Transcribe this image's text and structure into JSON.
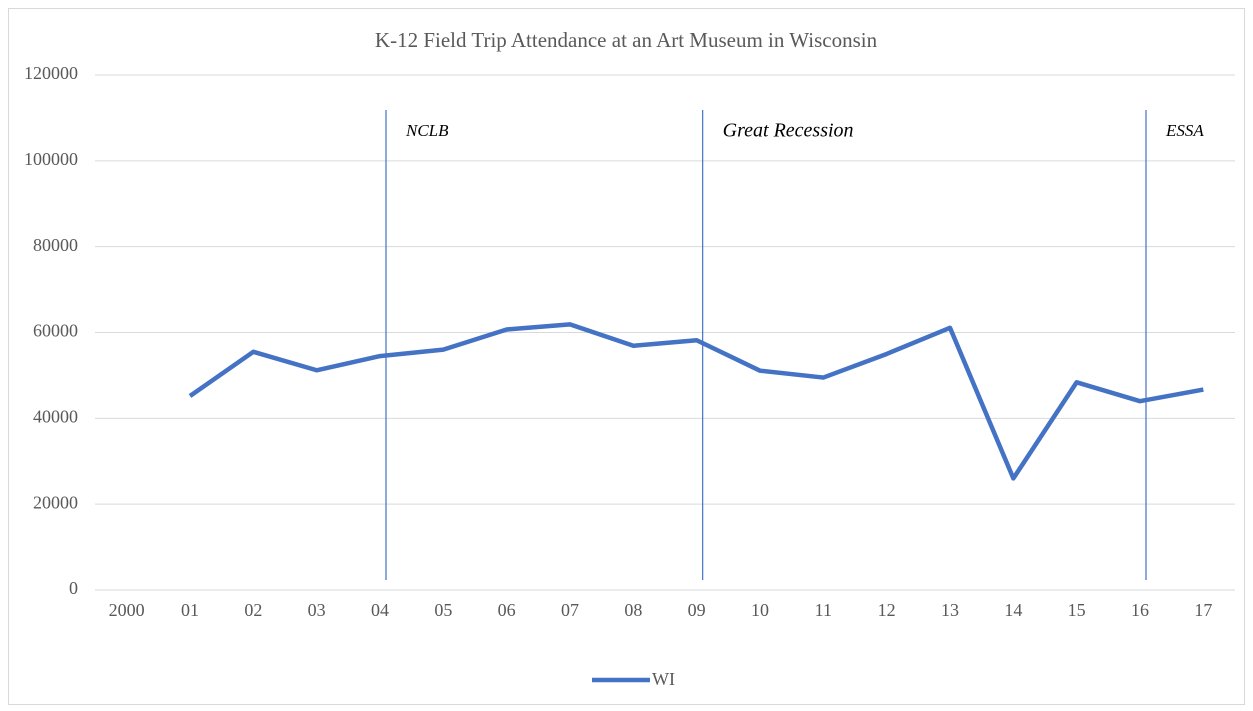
{
  "chart_data": {
    "type": "line",
    "title": "K-12 Field Trip Attendance at an Art Museum in Wisconsin",
    "categories": [
      "2000",
      "01",
      "02",
      "03",
      "04",
      "05",
      "06",
      "07",
      "08",
      "09",
      "10",
      "11",
      "12",
      "13",
      "14",
      "15",
      "16",
      "17"
    ],
    "series": [
      {
        "name": "WI",
        "color": "#4472c4",
        "values": [
          null,
          45200,
          55500,
          51200,
          54500,
          56000,
          60700,
          61900,
          56900,
          58200,
          51100,
          49500,
          55000,
          61100,
          26000,
          48400,
          44000,
          46700
        ]
      }
    ],
    "ylim": [
      0,
      120000
    ],
    "yticks": [
      0,
      20000,
      40000,
      60000,
      80000,
      100000,
      120000
    ],
    "grid": true,
    "legend": "bottom",
    "annotations": [
      {
        "text": "NCLB",
        "at": "04"
      },
      {
        "text": "Great Recession",
        "at": "09"
      },
      {
        "text": "ESSA",
        "at": "16"
      }
    ]
  }
}
